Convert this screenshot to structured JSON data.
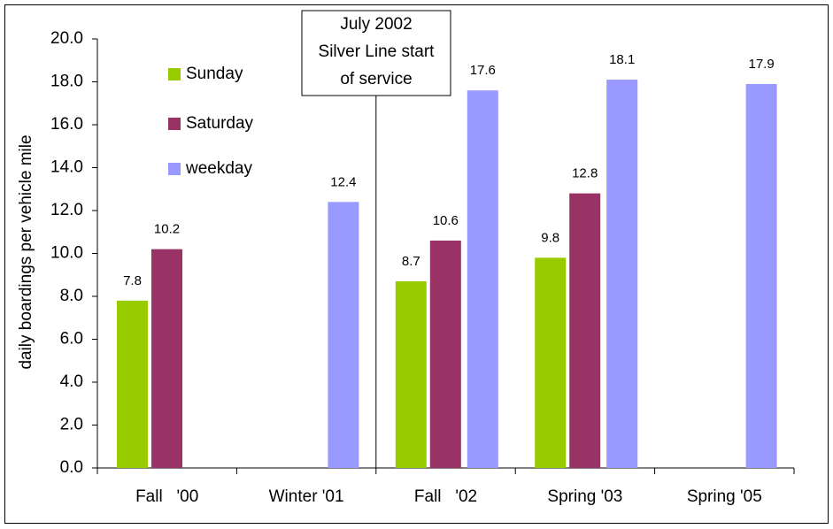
{
  "chart_data": {
    "type": "bar",
    "y_label": "daily boardings per vehicle mile",
    "annotation": [
      "July 2002",
      "Silver Line start",
      "of service"
    ],
    "categories": [
      "Fall   '00",
      "Winter '01",
      "Fall   '02",
      "Spring '03",
      "Spring '05"
    ],
    "series": [
      {
        "name": "Sunday",
        "color": "#99cc00",
        "values": [
          7.8,
          null,
          8.7,
          9.8,
          null
        ]
      },
      {
        "name": "Saturday",
        "color": "#993366",
        "values": [
          10.2,
          null,
          10.6,
          12.8,
          null
        ]
      },
      {
        "name": "weekday",
        "color": "#9999ff",
        "values": [
          null,
          12.4,
          17.6,
          18.1,
          17.9
        ]
      }
    ],
    "ylim": [
      0,
      20
    ],
    "yticks": [
      {
        "value": 0,
        "label": "0.0"
      },
      {
        "value": 2,
        "label": "2.0"
      },
      {
        "value": 4,
        "label": "4.0"
      },
      {
        "value": 6,
        "label": "6.0"
      },
      {
        "value": 8,
        "label": "8.0"
      },
      {
        "value": 10,
        "label": "10.0"
      },
      {
        "value": 12,
        "label": "12.0"
      },
      {
        "value": 14,
        "label": "14.0"
      },
      {
        "value": 16,
        "label": "16.0"
      },
      {
        "value": 18,
        "label": "18.0"
      },
      {
        "value": 20,
        "label": "20.0"
      }
    ],
    "grid": false,
    "legend": "upper left"
  }
}
